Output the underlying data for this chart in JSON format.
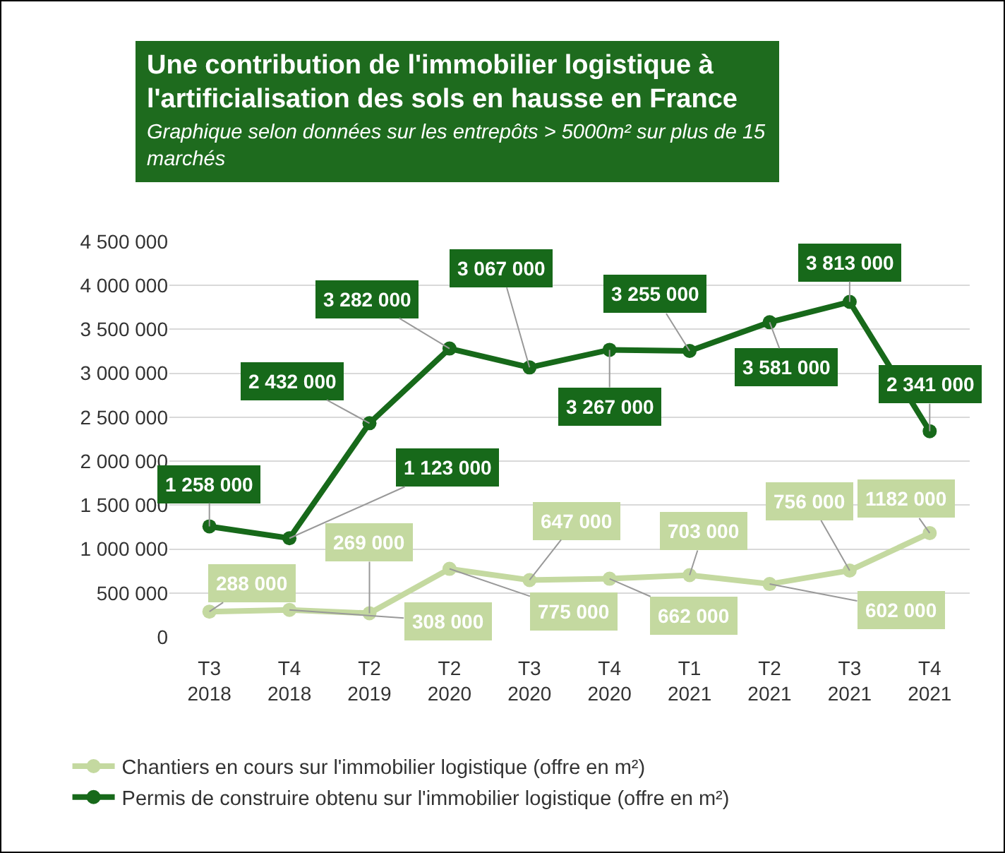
{
  "chart_data": {
    "type": "line",
    "title": "Une contribution de l'immobilier logistique à l'artificialisation des sols en hausse en France",
    "subtitle": "Graphique selon données sur les entrepôts > 5000m² sur plus de 15 marchés",
    "categories": [
      "T3 2018",
      "T4 2018",
      "T2 2019",
      "T2 2020",
      "T3 2020",
      "T4 2020",
      "T1 2021",
      "T2 2021",
      "T3 2021",
      "T4 2021"
    ],
    "series": [
      {
        "name": "Chantiers en cours sur l'immobilier logistique (offre en m²)",
        "color": "#c4d9a0",
        "values": [
          288000,
          308000,
          269000,
          775000,
          647000,
          662000,
          703000,
          602000,
          756000,
          1182000
        ],
        "value_labels": [
          "288 000",
          "308 000",
          "269 000",
          "775 000",
          "647 000",
          "662 000",
          "703 000",
          "602 000",
          "756 000",
          "1182 000"
        ]
      },
      {
        "name": "Permis de construire obtenu sur l'immobilier logistique (offre en m²)",
        "color": "#17691a",
        "values": [
          1258000,
          1123000,
          2432000,
          3282000,
          3067000,
          3267000,
          3255000,
          3581000,
          3813000,
          2341000
        ],
        "value_labels": [
          "1 258 000",
          "1 123 000",
          "2 432 000",
          "3 282 000",
          "3 067 000",
          "3 267 000",
          "3 255 000",
          "3 581 000",
          "3 813 000",
          "2 341 000"
        ]
      }
    ],
    "ylim": [
      0,
      4500000
    ],
    "yticks": [
      0,
      {
        "value": 500000,
        "label": "500 000"
      },
      {
        "value": 1000000,
        "label": "1 000 000"
      },
      {
        "value": 1500000,
        "label": "1 500 000"
      },
      {
        "value": 2000000,
        "label": "2 000 000"
      },
      {
        "value": 2500000,
        "label": "2 500 000"
      },
      {
        "value": 3000000,
        "label": "3 000 000"
      },
      {
        "value": 3500000,
        "label": "3 500 000"
      },
      {
        "value": 4000000,
        "label": "4 000 000"
      },
      {
        "value": 4500000,
        "label": "4 500 000"
      }
    ],
    "grid": "y",
    "legend": "bottom",
    "marker": "circle",
    "line_style": "solid"
  }
}
